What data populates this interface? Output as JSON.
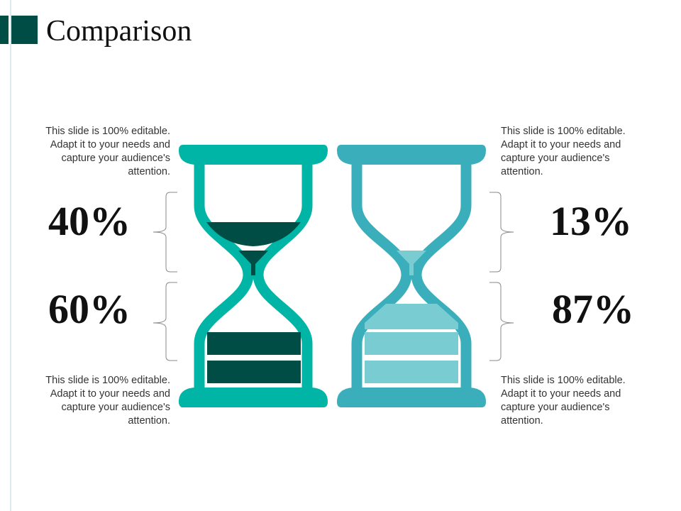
{
  "header": {
    "title": "Comparison"
  },
  "left": {
    "top_note": "This slide is 100% editable. Adapt it to your needs and capture your audience's attention.",
    "top_percent": "40%",
    "bottom_percent": "60%",
    "bottom_note": "This slide is 100% editable. Adapt it to your needs and capture your audience's attention."
  },
  "right": {
    "top_note": "This slide is 100% editable. Adapt it to your needs and capture your audience's attention.",
    "top_percent": "13%",
    "bottom_percent": "87%",
    "bottom_note": "This slide is 100% editable. Adapt it to your needs and capture your audience's attention."
  }
}
